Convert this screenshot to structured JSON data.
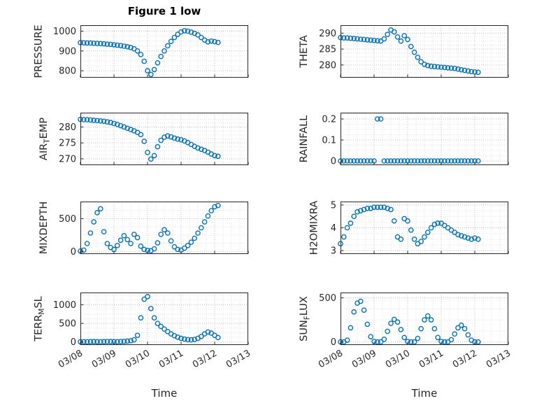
{
  "figure": {
    "title": "Figure 1 low",
    "marker_color": "#0072BD",
    "axis_color": "#262626",
    "grid_color": "#c0c0c0",
    "minor_grid_color": "#e0e0e0",
    "time_label_left": "Time",
    "time_label_right": "Time"
  },
  "x_axis": {
    "lim": [
      0,
      5
    ],
    "label": "Time",
    "tick_values": [
      0,
      1,
      2,
      3,
      4,
      5
    ],
    "tick_labels": [
      "03/08",
      "03/09",
      "03/10",
      "03/11",
      "03/12",
      "03/13"
    ],
    "minor_step": 0.25
  },
  "chart_data": [
    {
      "type": "scatter",
      "ylabel": "PRESSURE",
      "ylabel_parts": [
        {
          "text": "PRESSURE",
          "sub": false
        }
      ],
      "row": 0,
      "col": 0,
      "ylim": [
        765,
        1030
      ],
      "yticks": [
        800,
        900,
        1000
      ],
      "ytick_labels": [
        "800",
        "900",
        "1000"
      ],
      "show_xtick_labels": false,
      "x": [
        0,
        0.1,
        0.2,
        0.3,
        0.4,
        0.5,
        0.6,
        0.7,
        0.8,
        0.9,
        1,
        1.1,
        1.2,
        1.3,
        1.4,
        1.5,
        1.6,
        1.7,
        1.8,
        1.9,
        2,
        2.1,
        2.2,
        2.3,
        2.4,
        2.5,
        2.6,
        2.7,
        2.8,
        2.9,
        3,
        3.1,
        3.2,
        3.3,
        3.4,
        3.5,
        3.6,
        3.7,
        3.8,
        3.9,
        4,
        4.1
      ],
      "y": [
        942,
        941,
        940,
        940,
        939,
        938,
        937,
        936,
        934,
        933,
        931,
        929,
        927,
        924,
        921,
        917,
        911,
        900,
        882,
        848,
        800,
        781,
        806,
        840,
        872,
        900,
        926,
        948,
        968,
        984,
        996,
        1002,
        1000,
        995,
        989,
        981,
        968,
        955,
        946,
        950,
        947,
        943
      ]
    },
    {
      "type": "scatter",
      "ylabel": "THETA",
      "ylabel_parts": [
        {
          "text": "THETA",
          "sub": false
        }
      ],
      "row": 0,
      "col": 1,
      "ylim": [
        276,
        292.5
      ],
      "yticks": [
        280,
        285,
        290
      ],
      "ytick_labels": [
        "280",
        "285",
        "290"
      ],
      "show_xtick_labels": false,
      "x": [
        0,
        0.1,
        0.2,
        0.3,
        0.4,
        0.5,
        0.6,
        0.7,
        0.8,
        0.9,
        1,
        1.1,
        1.2,
        1.3,
        1.4,
        1.5,
        1.6,
        1.7,
        1.8,
        1.9,
        2,
        2.1,
        2.2,
        2.3,
        2.4,
        2.5,
        2.6,
        2.7,
        2.8,
        2.9,
        3,
        3.1,
        3.2,
        3.3,
        3.4,
        3.5,
        3.6,
        3.7,
        3.8,
        3.9,
        4,
        4.1
      ],
      "y": [
        288.6,
        288.5,
        288.5,
        288.4,
        288.3,
        288.2,
        288.1,
        288,
        287.9,
        287.8,
        287.7,
        287.6,
        287.5,
        288.2,
        289.6,
        291,
        290.4,
        288.8,
        287.5,
        289.2,
        288,
        285.8,
        284,
        282.4,
        281,
        280.2,
        279.8,
        279.6,
        279.5,
        279.4,
        279.3,
        279.2,
        279.1,
        279,
        278.9,
        278.7,
        278.5,
        278.3,
        278.1,
        277.9,
        277.8,
        277.7
      ]
    },
    {
      "type": "scatter",
      "ylabel": "AIR_TEMP",
      "ylabel_parts": [
        {
          "text": "AIR",
          "sub": false
        },
        {
          "text": "T",
          "sub": true
        },
        {
          "text": "EMP",
          "sub": false
        }
      ],
      "row": 1,
      "col": 0,
      "ylim": [
        268,
        284.5
      ],
      "yticks": [
        270,
        275,
        280
      ],
      "ytick_labels": [
        "270",
        "275",
        "280"
      ],
      "show_xtick_labels": false,
      "x": [
        0,
        0.1,
        0.2,
        0.3,
        0.4,
        0.5,
        0.6,
        0.7,
        0.8,
        0.9,
        1,
        1.1,
        1.2,
        1.3,
        1.4,
        1.5,
        1.6,
        1.7,
        1.8,
        1.9,
        2,
        2.1,
        2.2,
        2.3,
        2.4,
        2.5,
        2.6,
        2.7,
        2.8,
        2.9,
        3,
        3.1,
        3.2,
        3.3,
        3.4,
        3.5,
        3.6,
        3.7,
        3.8,
        3.9,
        4,
        4.1
      ],
      "y": [
        282.4,
        282.3,
        282.3,
        282.2,
        282.1,
        282,
        281.9,
        281.8,
        281.6,
        281.4,
        281.1,
        280.8,
        280.4,
        280,
        279.6,
        279.2,
        278.8,
        278.3,
        277.6,
        275.5,
        272,
        269.9,
        271,
        273.8,
        275.8,
        276.8,
        277.2,
        276.9,
        276.5,
        276.2,
        276,
        275.6,
        275.1,
        274.5,
        273.9,
        273.4,
        273,
        272.6,
        272.1,
        271.5,
        271,
        270.8
      ]
    },
    {
      "type": "scatter",
      "ylabel": "RAINFALL",
      "ylabel_parts": [
        {
          "text": "RAINFALL",
          "sub": false
        }
      ],
      "row": 1,
      "col": 1,
      "ylim": [
        -0.02,
        0.23
      ],
      "yticks": [
        0,
        0.1,
        0.2
      ],
      "ytick_labels": [
        "0",
        "0.1",
        "0.2"
      ],
      "show_xtick_labels": false,
      "x": [
        0,
        0.1,
        0.2,
        0.3,
        0.4,
        0.5,
        0.6,
        0.7,
        0.8,
        0.9,
        1,
        1.1,
        1.2,
        1.3,
        1.4,
        1.5,
        1.6,
        1.7,
        1.8,
        1.9,
        2,
        2.1,
        2.2,
        2.3,
        2.4,
        2.5,
        2.6,
        2.7,
        2.8,
        2.9,
        3,
        3.1,
        3.2,
        3.3,
        3.4,
        3.5,
        3.6,
        3.7,
        3.8,
        3.9,
        4,
        4.1
      ],
      "y": [
        0,
        0,
        0,
        0,
        0,
        0,
        0,
        0,
        0,
        0,
        0,
        0.2,
        0.2,
        0,
        0,
        0,
        0,
        0,
        0,
        0,
        0,
        0,
        0,
        0,
        0,
        0,
        0,
        0,
        0,
        0,
        0,
        0,
        0,
        0,
        0,
        0,
        0,
        0,
        0,
        0,
        0,
        0
      ]
    },
    {
      "type": "scatter",
      "ylabel": "MIXDEPTH",
      "ylabel_parts": [
        {
          "text": "MIXDEPTH",
          "sub": false
        }
      ],
      "row": 2,
      "col": 0,
      "ylim": [
        -40,
        760
      ],
      "yticks": [
        0,
        500
      ],
      "ytick_labels": [
        "0",
        "500"
      ],
      "show_xtick_labels": false,
      "x": [
        0,
        0.1,
        0.2,
        0.3,
        0.4,
        0.5,
        0.6,
        0.7,
        0.8,
        0.9,
        1,
        1.1,
        1.2,
        1.3,
        1.4,
        1.5,
        1.6,
        1.7,
        1.8,
        1.9,
        2,
        2.1,
        2.2,
        2.3,
        2.4,
        2.5,
        2.6,
        2.7,
        2.8,
        2.9,
        3,
        3.1,
        3.2,
        3.3,
        3.4,
        3.5,
        3.6,
        3.7,
        3.8,
        3.9,
        4,
        4.1
      ],
      "y": [
        5,
        20,
        120,
        280,
        450,
        590,
        650,
        300,
        120,
        60,
        30,
        90,
        170,
        240,
        180,
        120,
        260,
        210,
        80,
        30,
        15,
        10,
        40,
        130,
        260,
        330,
        280,
        160,
        70,
        30,
        20,
        50,
        90,
        140,
        200,
        280,
        360,
        450,
        540,
        620,
        680,
        700
      ]
    },
    {
      "type": "scatter",
      "ylabel": "H2OMIXRA",
      "ylabel_parts": [
        {
          "text": "H2OMIXRA",
          "sub": false
        }
      ],
      "row": 2,
      "col": 1,
      "ylim": [
        2.85,
        5.15
      ],
      "yticks": [
        3,
        4,
        5
      ],
      "ytick_labels": [
        "3",
        "4",
        "5"
      ],
      "show_xtick_labels": false,
      "x": [
        0,
        0.1,
        0.2,
        0.3,
        0.4,
        0.5,
        0.6,
        0.7,
        0.8,
        0.9,
        1,
        1.1,
        1.2,
        1.3,
        1.4,
        1.5,
        1.6,
        1.7,
        1.8,
        1.9,
        2,
        2.1,
        2.2,
        2.3,
        2.4,
        2.5,
        2.6,
        2.7,
        2.8,
        2.9,
        3,
        3.1,
        3.2,
        3.3,
        3.4,
        3.5,
        3.6,
        3.7,
        3.8,
        3.9,
        4,
        4.1
      ],
      "y": [
        3.3,
        3.6,
        4,
        4.2,
        4.5,
        4.7,
        4.75,
        4.8,
        4.85,
        4.85,
        4.9,
        4.9,
        4.9,
        4.9,
        4.85,
        4.8,
        4.3,
        3.6,
        3.5,
        4.4,
        4.3,
        3.9,
        3.5,
        3.3,
        3.4,
        3.6,
        3.8,
        4,
        4.15,
        4.2,
        4.2,
        4.1,
        4,
        3.9,
        3.8,
        3.7,
        3.65,
        3.6,
        3.55,
        3.5,
        3.55,
        3.5
      ]
    },
    {
      "type": "scatter",
      "ylabel": "TERR_MSL",
      "ylabel_parts": [
        {
          "text": "TERR",
          "sub": false
        },
        {
          "text": "M",
          "sub": true
        },
        {
          "text": "SL",
          "sub": false
        }
      ],
      "row": 3,
      "col": 0,
      "ylim": [
        -80,
        1330
      ],
      "yticks": [
        0,
        500,
        1000
      ],
      "ytick_labels": [
        "0",
        "500",
        "1000"
      ],
      "show_xtick_labels": true,
      "x": [
        0,
        0.1,
        0.2,
        0.3,
        0.4,
        0.5,
        0.6,
        0.7,
        0.8,
        0.9,
        1,
        1.1,
        1.2,
        1.3,
        1.4,
        1.5,
        1.6,
        1.7,
        1.8,
        1.9,
        2,
        2.1,
        2.2,
        2.3,
        2.4,
        2.5,
        2.6,
        2.7,
        2.8,
        2.9,
        3,
        3.1,
        3.2,
        3.3,
        3.4,
        3.5,
        3.6,
        3.7,
        3.8,
        3.9,
        4,
        4.1
      ],
      "y": [
        5,
        8,
        6,
        10,
        12,
        9,
        7,
        10,
        14,
        12,
        10,
        9,
        13,
        18,
        25,
        35,
        60,
        180,
        650,
        1150,
        1220,
        900,
        650,
        500,
        420,
        350,
        280,
        220,
        170,
        130,
        100,
        80,
        65,
        60,
        70,
        100,
        150,
        220,
        270,
        240,
        180,
        120
      ]
    },
    {
      "type": "scatter",
      "ylabel": "SUN_FLUX",
      "ylabel_parts": [
        {
          "text": "SUN",
          "sub": false
        },
        {
          "text": "F",
          "sub": true
        },
        {
          "text": "LUX",
          "sub": false
        }
      ],
      "row": 3,
      "col": 1,
      "ylim": [
        -35,
        560
      ],
      "yticks": [
        0,
        500
      ],
      "ytick_labels": [
        "0",
        "500"
      ],
      "show_xtick_labels": true,
      "x": [
        0,
        0.1,
        0.2,
        0.3,
        0.4,
        0.5,
        0.6,
        0.7,
        0.8,
        0.9,
        1,
        1.1,
        1.2,
        1.3,
        1.4,
        1.5,
        1.6,
        1.7,
        1.8,
        1.9,
        2,
        2.1,
        2.2,
        2.3,
        2.4,
        2.5,
        2.6,
        2.7,
        2.8,
        2.9,
        3,
        3.1,
        3.2,
        3.3,
        3.4,
        3.5,
        3.6,
        3.7,
        3.8,
        3.9,
        4,
        4.1
      ],
      "y": [
        0,
        0,
        20,
        160,
        340,
        440,
        460,
        360,
        200,
        60,
        5,
        0,
        0,
        30,
        120,
        210,
        255,
        225,
        140,
        50,
        5,
        0,
        0,
        40,
        150,
        250,
        295,
        250,
        150,
        50,
        5,
        0,
        0,
        25,
        90,
        160,
        190,
        150,
        80,
        20,
        0,
        0
      ]
    }
  ]
}
